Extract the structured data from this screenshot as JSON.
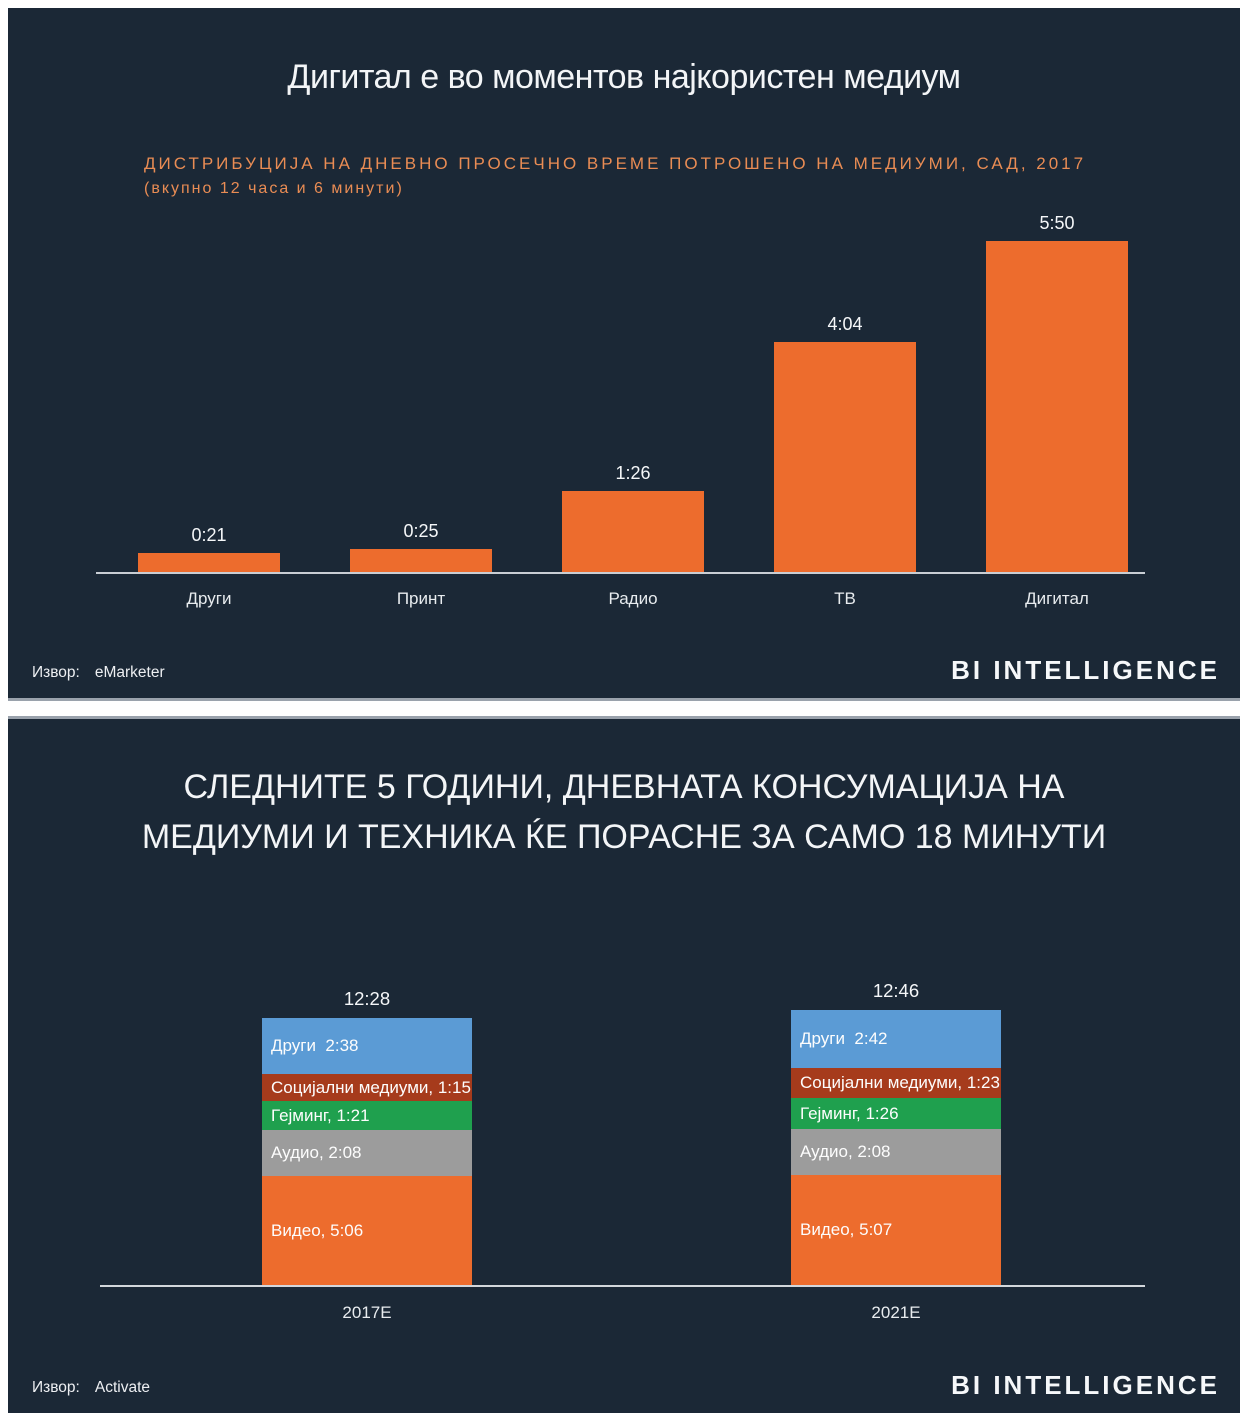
{
  "page": {
    "background": "#FFFFFF",
    "panel_background": "#1B2836",
    "accent_orange": "#ED6C2D"
  },
  "brand": "BI INTELLIGENCE",
  "source_label": "Извор:",
  "panel2_title_line1": "СЛЕДНИТЕ 5 ГОДИНИ, ДНЕВНАТА КОНСУМАЦИЈА НА",
  "panel2_title_line2": "МЕДИУМИ И ТЕХНИКА ЌЕ ПОРАСНЕ ЗА САМО 18 МИНУТИ",
  "chart_data": [
    {
      "type": "bar",
      "title": "Дигитал е во моментов најкористен медиум",
      "subtitle": "ДИСТРИБУЦИЈА НА ДНЕВНО ПРОСЕЧНО ВРЕМЕ ПОТРОШЕНО НА МЕДИУМИ, САД, 2017",
      "subtitle_note": "(вкупно 12 часа и 6 минути)",
      "categories": [
        "Други",
        "Принт",
        "Радио",
        "ТВ",
        "Дигитал"
      ],
      "values": [
        "0:21",
        "0:25",
        "1:26",
        "4:04",
        "5:50"
      ],
      "values_minutes": [
        21,
        25,
        86,
        244,
        350
      ],
      "bar_color": "#ED6C2D",
      "grid": false,
      "legend": "none",
      "source": "eMarketer"
    },
    {
      "type": "bar",
      "stacked": true,
      "title": "СЛЕДНИТЕ 5 ГОДИНИ, ДНЕВНАТА КОНСУМАЦИЈА НА МЕДИУМИ И ТЕХНИКА ЌЕ ПОРАСНЕ ЗА САМО 18 МИНУТИ",
      "categories": [
        "2017E",
        "2021E"
      ],
      "totals": [
        "12:28",
        "12:46"
      ],
      "series": [
        {
          "name": "Други",
          "color": "#5B9BD5",
          "values": [
            "2:38",
            "2:42"
          ],
          "values_minutes": [
            158,
            162
          ],
          "display": [
            "Други  2:38",
            "Други  2:42"
          ]
        },
        {
          "name": "Социјални медиуми",
          "color": "#A63B1C",
          "values": [
            "1:15",
            "1:23"
          ],
          "values_minutes": [
            75,
            83
          ],
          "display": [
            "Социјални медиуми, 1:15",
            "Социјални медиуми, 1:23"
          ]
        },
        {
          "name": "Гејминг",
          "color": "#1FA04E",
          "values": [
            "1:21",
            "1:26"
          ],
          "values_minutes": [
            81,
            86
          ],
          "display": [
            "Гејминг, 1:21",
            "Гејминг, 1:26"
          ]
        },
        {
          "name": "Аудио",
          "color": "#9C9C9C",
          "values": [
            "2:08",
            "2:08"
          ],
          "values_minutes": [
            128,
            128
          ],
          "display": [
            "Аудио, 2:08",
            "Аудио, 2:08"
          ]
        },
        {
          "name": "Видео",
          "color": "#ED6C2D",
          "values": [
            "5:06",
            "5:07"
          ],
          "values_minutes": [
            306,
            307
          ],
          "display": [
            "Видео, 5:06",
            "Видео, 5:07"
          ]
        }
      ],
      "grid": false,
      "legend": "none",
      "source": "Activate"
    }
  ]
}
